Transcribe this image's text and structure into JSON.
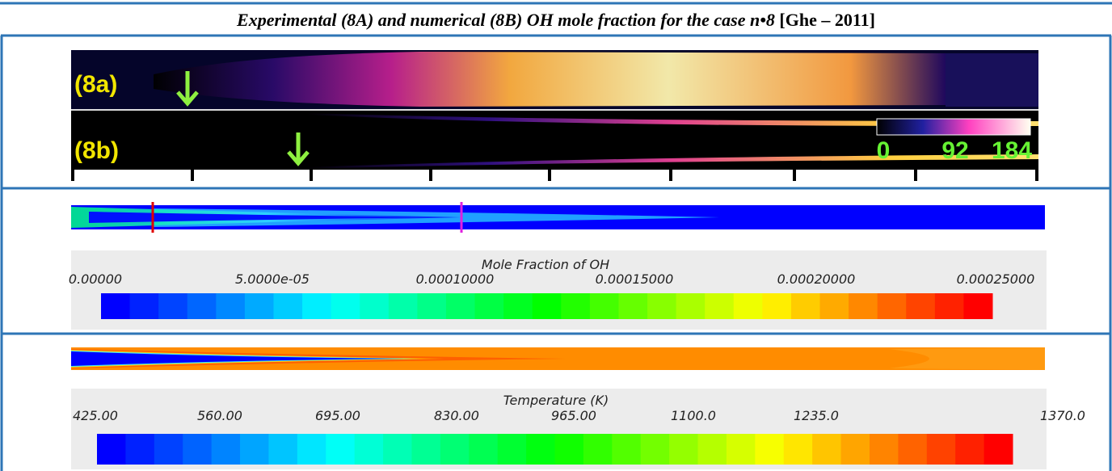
{
  "title": {
    "text": "Experimental (8A) and numerical (8B) OH mole fraction for the case n•8",
    "reference": "[Ghe – 2011]"
  },
  "experiment": {
    "panel_a": "(8a)",
    "panel_b": "(8b)",
    "colorbar_labels": [
      "0",
      "92",
      "184"
    ]
  },
  "oh_contour": {
    "legend_title": "Mole Fraction of OH",
    "legend_labels": [
      "0.00000",
      "5.0000e-05",
      "0.00010000",
      "0.00015000",
      "0.00020000",
      "0.00025000"
    ]
  },
  "temperature_contour": {
    "legend_title": "Temperature (K)",
    "legend_labels": [
      "425.00",
      "560.00",
      "695.00",
      "830.00",
      "965.00",
      "1100.0",
      "1235.0",
      "1370.0"
    ]
  }
}
